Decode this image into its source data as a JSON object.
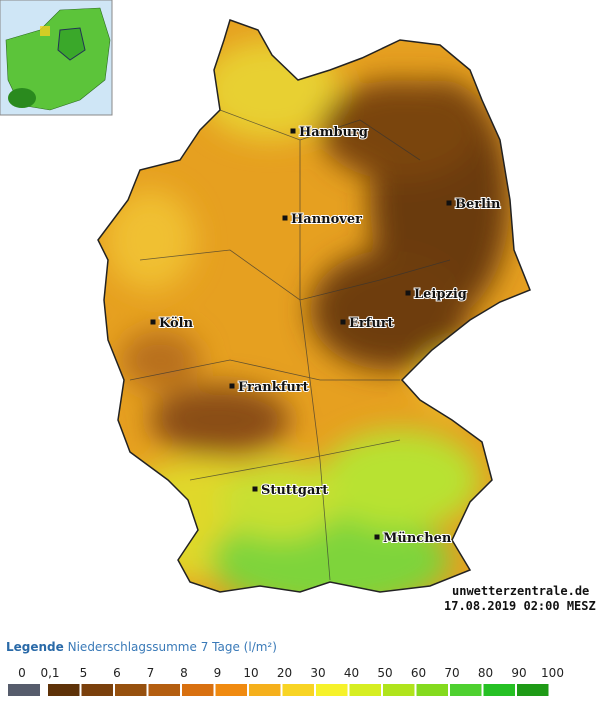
{
  "map": {
    "cities": [
      "Hamburg",
      "Hannover",
      "Berlin",
      "Leipzig",
      "Erfurt",
      "Köln",
      "Frankfurt",
      "Stuttgart",
      "München"
    ],
    "source": "unwetterzentrale.de",
    "timestamp": "17.08.2019 02:00 MESZ"
  },
  "legend": {
    "label": "Legende",
    "title": "Niederschlagssumme 7 Tage",
    "unit": "(l/m²)",
    "ticks": [
      "0",
      "0,1",
      "5",
      "6",
      "7",
      "8",
      "9",
      "10",
      "20",
      "30",
      "40",
      "50",
      "60",
      "70",
      "80",
      "90",
      "100"
    ],
    "colors": [
      "#565c6c",
      "#5e3208",
      "#7a400c",
      "#96500e",
      "#b45e10",
      "#d87010",
      "#f08a10",
      "#f5b01c",
      "#f8d424",
      "#f6f22a",
      "#d6ee22",
      "#b0e41c",
      "#84da1e",
      "#4ed030",
      "#26c024",
      "#1e9a16"
    ]
  }
}
